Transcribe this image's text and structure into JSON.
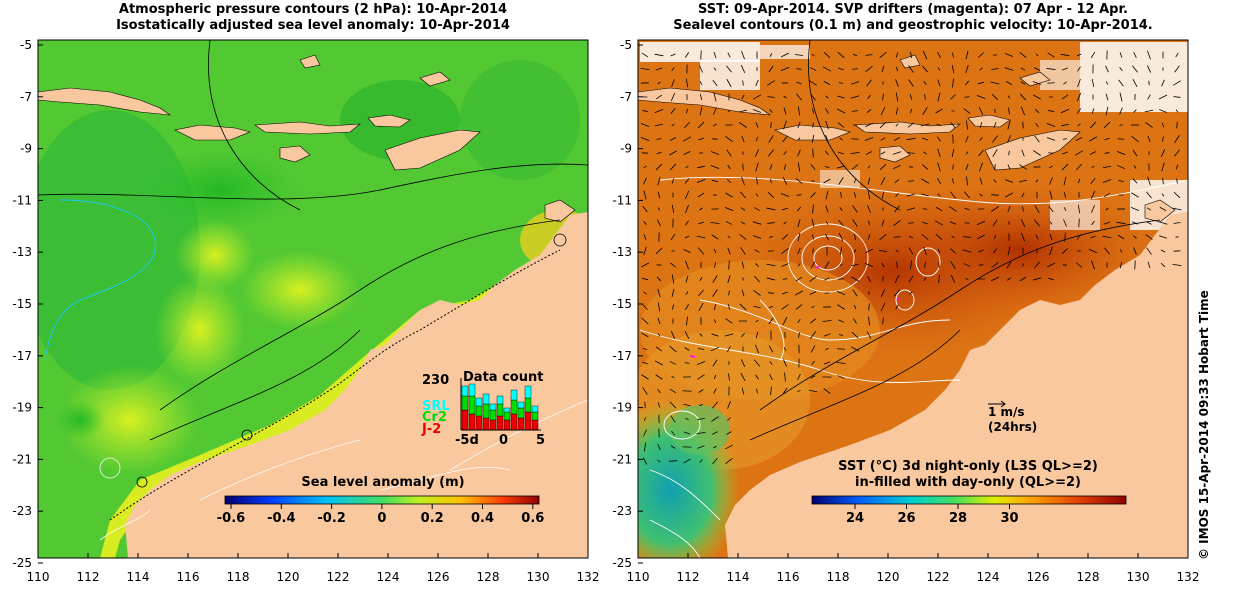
{
  "left_panel": {
    "title_line1": "Atmospheric pressure contours (2 hPa): 10-Apr-2014",
    "title_line2": "Isostatically adjusted sea level anomaly: 10-Apr-2014",
    "colorbar_title": "Sea level anomaly (m)",
    "colorbar_ticks": [
      "-0.6",
      "-0.4",
      "-0.2",
      "0",
      "0.2",
      "0.4",
      "0.6"
    ],
    "data_count": {
      "title": "Data count",
      "ymax_label": "230",
      "series_labels": [
        "SRL",
        "Cr2",
        "J-2"
      ],
      "series_colors": [
        "#00ffff",
        "#00dd00",
        "#ee0000"
      ],
      "x_ticks": [
        "-5d",
        "0",
        "5"
      ]
    }
  },
  "right_panel": {
    "title_line1": "SST: 09-Apr-2014. SVP drifters (magenta): 07 Apr - 12 Apr.",
    "title_line2": "Sealevel contours (0.1 m) and geostrophic velocity: 10-Apr-2014.",
    "velocity_scale": "1 m/s",
    "velocity_time": "(24hrs)",
    "colorbar_title_line1": "SST (°C)  3d night-only (L3S QL>=2)",
    "colorbar_title_line2": "in-filled with day-only (QL>=2)",
    "colorbar_ticks": [
      "24",
      "26",
      "28",
      "30"
    ]
  },
  "axes": {
    "y_ticks": [
      "-5",
      "-7",
      "-9",
      "-11",
      "-13",
      "-15",
      "-17",
      "-19",
      "-21",
      "-23",
      "-25"
    ],
    "x_ticks": [
      "110",
      "112",
      "114",
      "116",
      "118",
      "120",
      "122",
      "124",
      "126",
      "128",
      "130",
      "132"
    ]
  },
  "side_label": "© IMOS 15-Apr-2014 09:33 Hobart Time",
  "colors": {
    "land": "#f9c89f",
    "sla_scale": [
      "#000080",
      "#0040ff",
      "#00c0ff",
      "#40e060",
      "#c0f020",
      "#ffc000",
      "#ff4000",
      "#a00000"
    ],
    "sst_scale": [
      "#000080",
      "#0080ff",
      "#00e0c0",
      "#80f040",
      "#ffe000",
      "#ff8000",
      "#e04000",
      "#a00000"
    ]
  }
}
